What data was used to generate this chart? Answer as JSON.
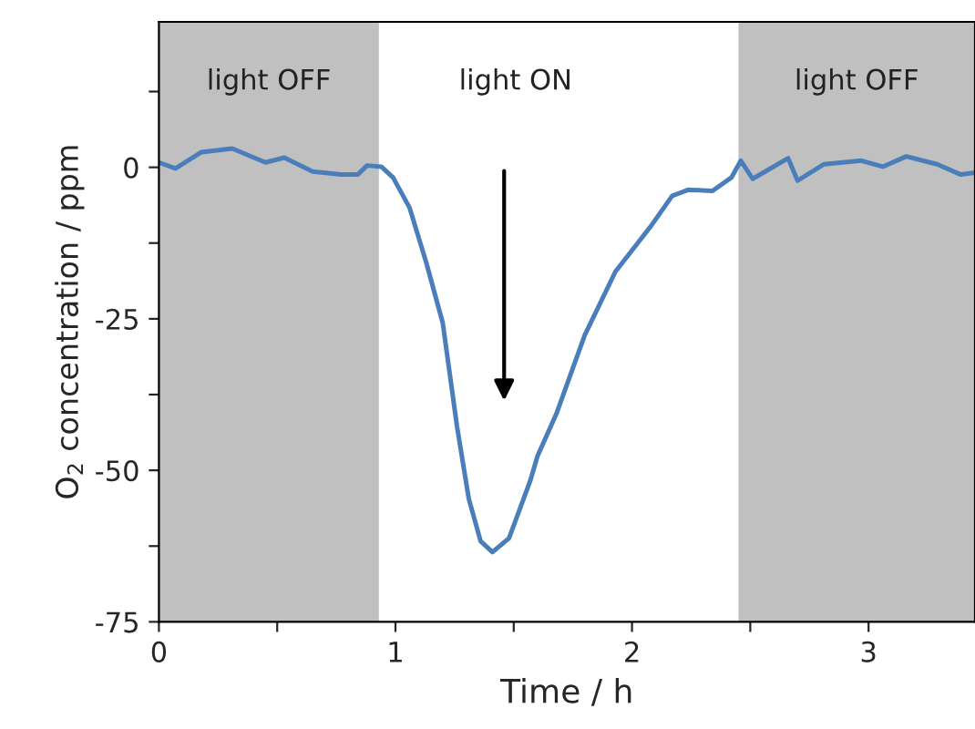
{
  "chart_data": {
    "type": "line",
    "xlabel": "Time / h",
    "ylabel": "O$_{2}$ concentration / ppm",
    "x": [
      0,
      0.07,
      0.18,
      0.31,
      0.45,
      0.53,
      0.65,
      0.77,
      0.84,
      0.88,
      0.94,
      0.99,
      1.06,
      1.13,
      1.2,
      1.26,
      1.31,
      1.36,
      1.41,
      1.48,
      1.52,
      1.57,
      1.6,
      1.68,
      1.8,
      1.93,
      2.0,
      2.08,
      2.17,
      2.24,
      2.34,
      2.42,
      2.46,
      2.51,
      2.66,
      2.7,
      2.81,
      2.97,
      3.06,
      3.16,
      3.29,
      3.39,
      3.45
    ],
    "series": [
      {
        "color": "#4a7ebb",
        "values": [
          0.8,
          -0.2,
          2.5,
          3.1,
          0.8,
          1.6,
          -0.7,
          -1.2,
          -1.2,
          0.3,
          0.1,
          -1.7,
          -6.7,
          -15.7,
          -25.7,
          -42.7,
          -54.7,
          -61.7,
          -63.5,
          -61.2,
          -57,
          -51.7,
          -47.7,
          -40.7,
          -27.7,
          -17.2,
          -13.7,
          -9.7,
          -4.7,
          -3.7,
          -3.9,
          -1.7,
          1.1,
          -1.9,
          1.5,
          -2.2,
          0.5,
          1.1,
          0.1,
          1.8,
          0.5,
          -1.2,
          -0.9
        ]
      }
    ],
    "xlim": [
      0,
      3.45
    ],
    "ylim": [
      -75,
      24
    ],
    "xticks": [
      0,
      {
        "value": 0.5,
        "label": null
      },
      1,
      {
        "value": 1.5,
        "label": null
      },
      2,
      {
        "value": 2.5,
        "label": null
      },
      3
    ],
    "yticks": [
      -75,
      {
        "value": -62.5,
        "label": null
      },
      -50,
      {
        "value": -37.5,
        "label": null
      },
      -25,
      {
        "value": -12.5,
        "label": null
      },
      0,
      {
        "value": 12.5,
        "label": null
      }
    ],
    "bands": [
      {
        "axis": "x",
        "from": 0,
        "to": 0.93,
        "label": "light OFF",
        "color": "#c0c0c0"
      },
      {
        "axis": "x",
        "from": 2.45,
        "to": 3.45,
        "label": "light OFF",
        "color": "#c0c0c0"
      }
    ],
    "annotations": [
      "light ON"
    ],
    "grid": false,
    "legend": false,
    "marker": "none",
    "line_style": "solid"
  }
}
